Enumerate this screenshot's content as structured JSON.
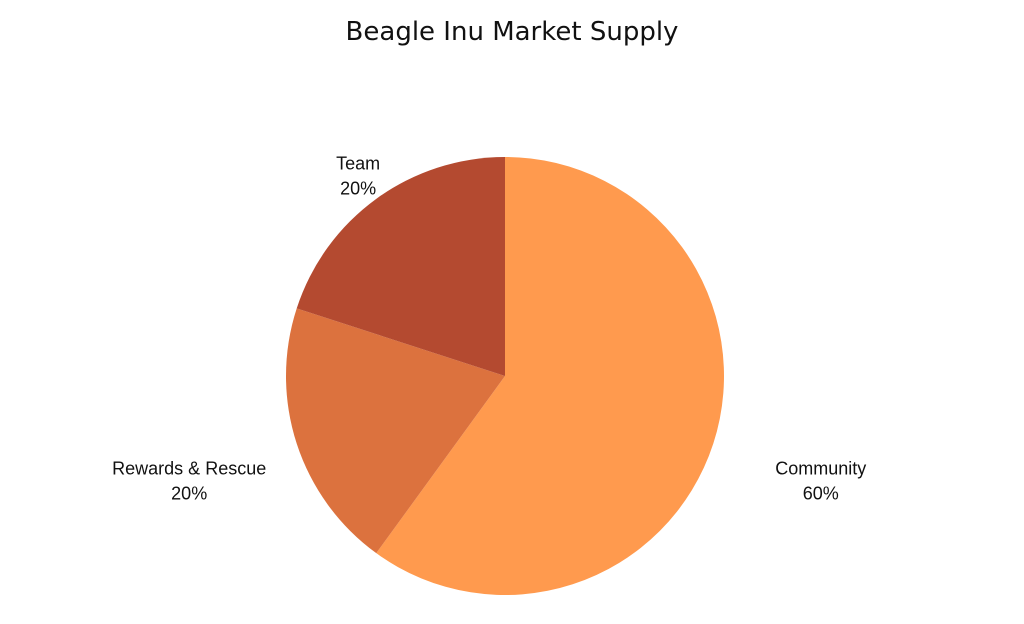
{
  "chart_data": {
    "type": "pie",
    "title": "Beagle Inu Market Supply",
    "slices": [
      {
        "label": "Community",
        "value": 60,
        "value_label": "60%",
        "color": "#FF9A4E"
      },
      {
        "label": "Rewards & Rescue",
        "value": 20,
        "value_label": "20%",
        "color": "#DC723E"
      },
      {
        "label": "Team",
        "value": 20,
        "value_label": "20%",
        "color": "#B44A30"
      }
    ],
    "start_angle_deg": 0,
    "direction": "clockwise",
    "legend": "none",
    "grid": false
  }
}
